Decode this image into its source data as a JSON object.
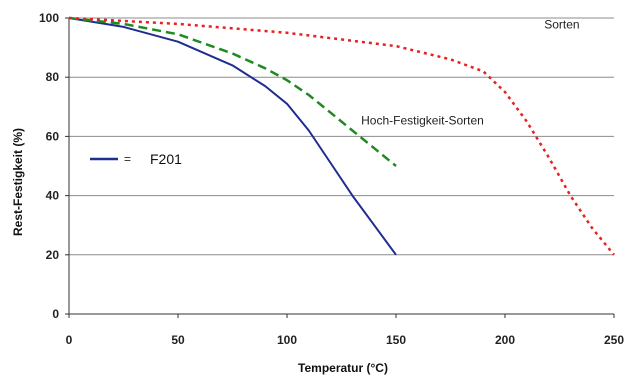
{
  "chart_data": {
    "type": "line",
    "xlabel": "Temperatur (°C)",
    "ylabel": "Rest-Festigkeit (%)",
    "xlim": [
      0,
      250
    ],
    "ylim": [
      0,
      100
    ],
    "x_ticks": [
      0,
      50,
      100,
      150,
      200,
      250
    ],
    "y_ticks": [
      0,
      20,
      40,
      60,
      80,
      100
    ],
    "grid": "horizontal",
    "series": [
      {
        "name": "F201",
        "color": "#1f2e8f",
        "style": "solid",
        "points": [
          [
            0,
            100
          ],
          [
            25,
            97
          ],
          [
            50,
            92
          ],
          [
            75,
            84
          ],
          [
            90,
            77
          ],
          [
            100,
            71
          ],
          [
            110,
            62
          ],
          [
            120,
            51
          ],
          [
            130,
            40
          ],
          [
            140,
            30
          ],
          [
            150,
            20
          ]
        ]
      },
      {
        "name": "Hoch-Festigkeit-Sorten",
        "color": "#1f8a1f",
        "style": "dashed",
        "points": [
          [
            0,
            100
          ],
          [
            25,
            98
          ],
          [
            50,
            94.5
          ],
          [
            75,
            88
          ],
          [
            90,
            83
          ],
          [
            100,
            79
          ],
          [
            110,
            74
          ],
          [
            120,
            68
          ],
          [
            130,
            62
          ],
          [
            140,
            56
          ],
          [
            150,
            50
          ]
        ]
      },
      {
        "name": "Sorten",
        "color": "#e82020",
        "style": "dotted",
        "points": [
          [
            0,
            100
          ],
          [
            50,
            98
          ],
          [
            100,
            95
          ],
          [
            150,
            90.5
          ],
          [
            175,
            86
          ],
          [
            190,
            82
          ],
          [
            200,
            75
          ],
          [
            210,
            65
          ],
          [
            220,
            53
          ],
          [
            230,
            40
          ],
          [
            240,
            29
          ],
          [
            250,
            20
          ]
        ]
      }
    ],
    "annotations": [
      {
        "text": "Sorten",
        "x": 218,
        "y": 96.5,
        "series": "Sorten"
      },
      {
        "text": "Hoch-Festigkeit-Sorten",
        "x": 134,
        "y": 64,
        "series": "Hoch-Festigkeit-Sorten"
      }
    ],
    "legend": {
      "placement": "left",
      "entries": [
        {
          "separator": "=",
          "label": "F201",
          "color": "#1f2e8f"
        }
      ]
    }
  }
}
